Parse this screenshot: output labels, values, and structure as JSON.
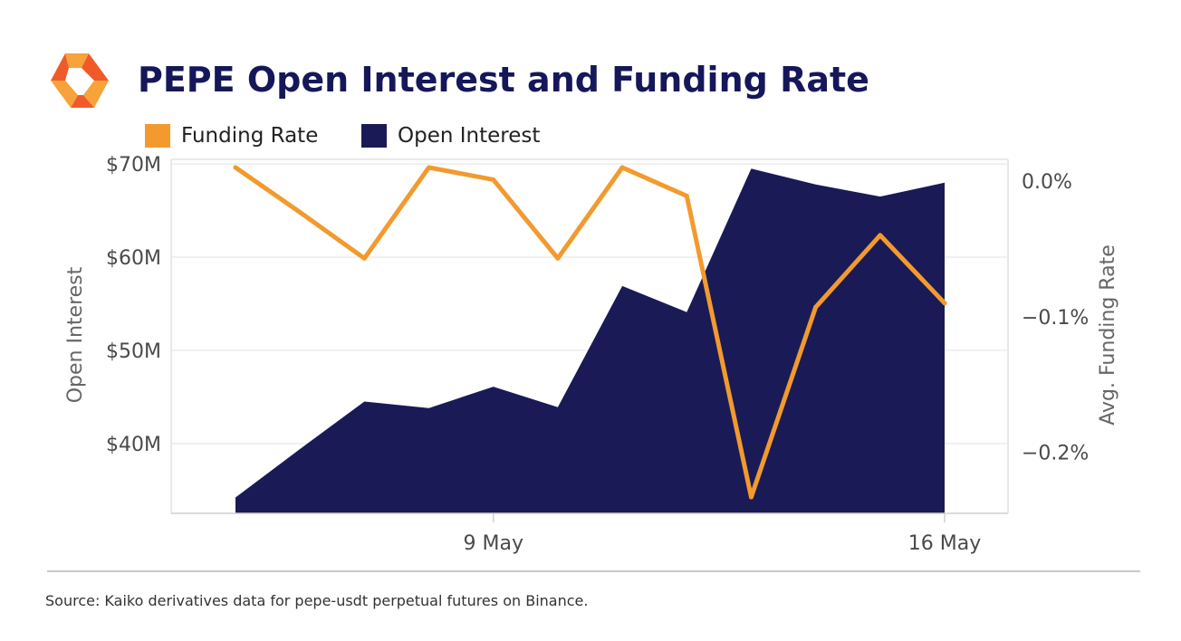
{
  "header": {
    "title": "PEPE Open Interest and Funding Rate"
  },
  "legend": [
    {
      "label": "Funding Rate",
      "color": "#f29a2e"
    },
    {
      "label": "Open Interest",
      "color": "#1a1a57"
    }
  ],
  "footer": {
    "source": "Source: Kaiko derivatives data for pepe-usdt perpetual futures on Binance."
  },
  "chart_data": {
    "type": "area+line",
    "title": "PEPE Open Interest and Funding Rate",
    "x_ticks": [
      "9 May",
      "16 May"
    ],
    "x_tick_index": [
      4,
      11
    ],
    "y_left": {
      "label": "Open Interest",
      "ticks": [
        "$40M",
        "$50M",
        "$60M",
        "$70M"
      ],
      "tick_values": [
        40,
        50,
        60,
        70
      ],
      "range": [
        32.5,
        70.5
      ],
      "unit": "M USD"
    },
    "y_right": {
      "label": "Avg. Funding Rate",
      "ticks": [
        "0.0%",
        "−0.1%",
        "−0.2%"
      ],
      "tick_values": [
        0.0,
        -0.1,
        -0.2
      ],
      "range": [
        -0.245,
        0.016
      ],
      "unit": "%"
    },
    "series": [
      {
        "name": "Open Interest",
        "axis": "left",
        "type": "area",
        "color": "#1a1a57",
        "values": [
          34.2,
          39.4,
          44.5,
          43.8,
          46.1,
          43.9,
          56.9,
          54.1,
          69.5,
          67.8,
          66.5,
          68.0
        ]
      },
      {
        "name": "Funding Rate",
        "axis": "right",
        "type": "line",
        "color": "#f29a2e",
        "values": [
          0.01,
          -0.023,
          -0.057,
          0.01,
          0.001,
          -0.057,
          0.01,
          -0.011,
          -0.233,
          -0.093,
          -0.04,
          -0.09
        ]
      }
    ],
    "grid": true
  }
}
